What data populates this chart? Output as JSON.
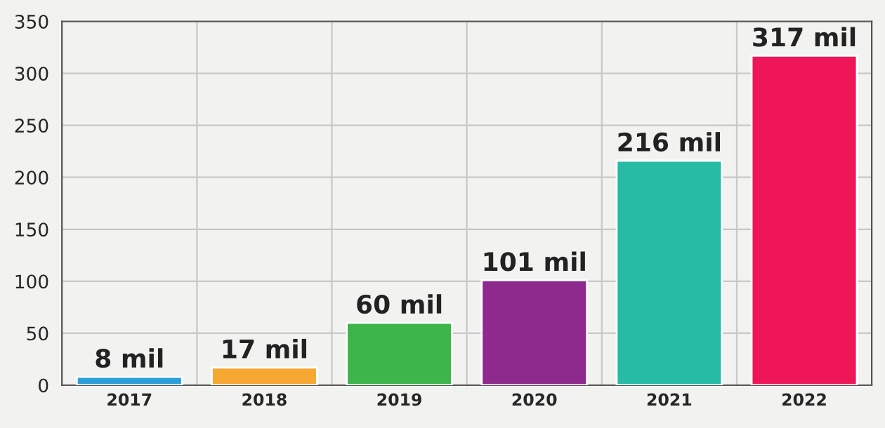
{
  "chart_data": {
    "type": "bar",
    "categories": [
      "2017",
      "2018",
      "2019",
      "2020",
      "2021",
      "2022"
    ],
    "values": [
      8,
      17,
      60,
      101,
      216,
      317
    ],
    "colors": [
      "#2a9fd8",
      "#f7a833",
      "#3db54a",
      "#8e2a8e",
      "#27bba5",
      "#ee1659"
    ],
    "value_labels": [
      "8 mil",
      "17 mil",
      "60 mil",
      "101 mil",
      "216 mil",
      "317 mil"
    ],
    "ylim": [
      0,
      350
    ],
    "yticks": [
      0,
      50,
      100,
      150,
      200,
      250,
      300,
      350
    ],
    "grid": true
  }
}
